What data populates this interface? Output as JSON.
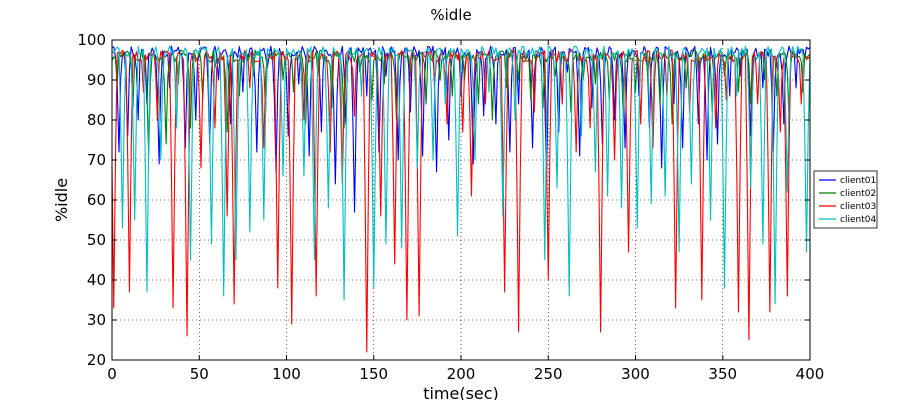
{
  "chart_data": {
    "type": "line",
    "title": "%idle",
    "xlabel": "time(sec)",
    "ylabel": "%idle",
    "xlim": [
      0,
      400
    ],
    "ylim": [
      20,
      100
    ],
    "xticks": [
      0,
      50,
      100,
      150,
      200,
      250,
      300,
      350,
      400
    ],
    "yticks": [
      20,
      30,
      40,
      50,
      60,
      70,
      80,
      90,
      100
    ],
    "grid": true,
    "legend_position": "right",
    "series": [
      {
        "name": "client01",
        "color": "#0000ff",
        "baseline": 97,
        "dips": [
          [
            4,
            72
          ],
          [
            9,
            76
          ],
          [
            15,
            80
          ],
          [
            20,
            84
          ],
          [
            27,
            69
          ],
          [
            33,
            88
          ],
          [
            42,
            73
          ],
          [
            48,
            80
          ],
          [
            56,
            74
          ],
          [
            61,
            90
          ],
          [
            68,
            79
          ],
          [
            75,
            87
          ],
          [
            83,
            72
          ],
          [
            89,
            93
          ],
          [
            94,
            67
          ],
          [
            101,
            76
          ],
          [
            107,
            89
          ],
          [
            113,
            71
          ],
          [
            120,
            77
          ],
          [
            128,
            64
          ],
          [
            134,
            79
          ],
          [
            139,
            57
          ],
          [
            146,
            86
          ],
          [
            153,
            72
          ],
          [
            157,
            91
          ],
          [
            164,
            70
          ],
          [
            171,
            82
          ],
          [
            178,
            71
          ],
          [
            186,
            67
          ],
          [
            193,
            75
          ],
          [
            200,
            86
          ],
          [
            207,
            69
          ],
          [
            213,
            81
          ],
          [
            220,
            79
          ],
          [
            228,
            72
          ],
          [
            233,
            84
          ],
          [
            241,
            73
          ],
          [
            249,
            66
          ],
          [
            256,
            77
          ],
          [
            261,
            92
          ],
          [
            268,
            71
          ],
          [
            275,
            83
          ],
          [
            281,
            74
          ],
          [
            288,
            80
          ],
          [
            294,
            73
          ],
          [
            302,
            86
          ],
          [
            308,
            78
          ],
          [
            315,
            68
          ],
          [
            322,
            84
          ],
          [
            327,
            73
          ],
          [
            336,
            79
          ],
          [
            341,
            70
          ],
          [
            347,
            74
          ],
          [
            354,
            86
          ],
          [
            360,
            91
          ],
          [
            366,
            76
          ],
          [
            373,
            88
          ],
          [
            379,
            72
          ],
          [
            385,
            79
          ],
          [
            392,
            88
          ]
        ]
      },
      {
        "name": "client02",
        "color": "#008000",
        "baseline": 96,
        "dips": [
          [
            3,
            89
          ],
          [
            12,
            83
          ],
          [
            21,
            71
          ],
          [
            31,
            74
          ],
          [
            38,
            89
          ],
          [
            45,
            78
          ],
          [
            52,
            85
          ],
          [
            59,
            93
          ],
          [
            66,
            77
          ],
          [
            73,
            86
          ],
          [
            81,
            91
          ],
          [
            88,
            82
          ],
          [
            98,
            90
          ],
          [
            104,
            87
          ],
          [
            111,
            79
          ],
          [
            118,
            91
          ],
          [
            126,
            83
          ],
          [
            133,
            78
          ],
          [
            142,
            92
          ],
          [
            149,
            85
          ],
          [
            156,
            89
          ],
          [
            163,
            80
          ],
          [
            171,
            91
          ],
          [
            180,
            84
          ],
          [
            188,
            90
          ],
          [
            195,
            86
          ],
          [
            202,
            90
          ],
          [
            210,
            84
          ],
          [
            218,
            80
          ],
          [
            226,
            88
          ],
          [
            233,
            90
          ],
          [
            240,
            85
          ],
          [
            247,
            83
          ],
          [
            254,
            91
          ],
          [
            263,
            82
          ],
          [
            270,
            90
          ],
          [
            277,
            89
          ],
          [
            285,
            85
          ],
          [
            293,
            81
          ],
          [
            300,
            87
          ],
          [
            307,
            91
          ],
          [
            314,
            84
          ],
          [
            321,
            79
          ],
          [
            329,
            88
          ],
          [
            336,
            92
          ],
          [
            344,
            82
          ],
          [
            351,
            91
          ],
          [
            359,
            87
          ],
          [
            366,
            84
          ],
          [
            374,
            90
          ],
          [
            381,
            86
          ],
          [
            388,
            80
          ],
          [
            396,
            87
          ]
        ]
      },
      {
        "name": "client03",
        "color": "#ff0000",
        "baseline": 96,
        "dips": [
          [
            1,
            33
          ],
          [
            10,
            37
          ],
          [
            18,
            87
          ],
          [
            26,
            80
          ],
          [
            35,
            33
          ],
          [
            43,
            26
          ],
          [
            51,
            68
          ],
          [
            59,
            78
          ],
          [
            66,
            56
          ],
          [
            70,
            34
          ],
          [
            79,
            88
          ],
          [
            87,
            73
          ],
          [
            95,
            38
          ],
          [
            103,
            29
          ],
          [
            110,
            80
          ],
          [
            117,
            36
          ],
          [
            125,
            72
          ],
          [
            132,
            64
          ],
          [
            139,
            81
          ],
          [
            146,
            22
          ],
          [
            154,
            56
          ],
          [
            162,
            44
          ],
          [
            169,
            30
          ],
          [
            176,
            31
          ],
          [
            185,
            90
          ],
          [
            192,
            79
          ],
          [
            201,
            77
          ],
          [
            206,
            61
          ],
          [
            214,
            84
          ],
          [
            225,
            37
          ],
          [
            233,
            27
          ],
          [
            242,
            82
          ],
          [
            250,
            40
          ],
          [
            258,
            84
          ],
          [
            266,
            72
          ],
          [
            274,
            78
          ],
          [
            280,
            27
          ],
          [
            288,
            70
          ],
          [
            296,
            47
          ],
          [
            303,
            79
          ],
          [
            310,
            73
          ],
          [
            318,
            86
          ],
          [
            323,
            33
          ],
          [
            331,
            82
          ],
          [
            338,
            35
          ],
          [
            346,
            78
          ],
          [
            352,
            85
          ],
          [
            359,
            32
          ],
          [
            365,
            25
          ],
          [
            370,
            84
          ],
          [
            377,
            32
          ],
          [
            383,
            77
          ],
          [
            387,
            36
          ],
          [
            395,
            84
          ]
        ]
      },
      {
        "name": "client04",
        "color": "#00bfbf",
        "baseline": 97,
        "dips": [
          [
            6,
            53
          ],
          [
            13,
            55
          ],
          [
            20,
            37
          ],
          [
            28,
            70
          ],
          [
            37,
            78
          ],
          [
            45,
            45
          ],
          [
            57,
            49
          ],
          [
            64,
            36
          ],
          [
            71,
            45
          ],
          [
            79,
            52
          ],
          [
            87,
            55
          ],
          [
            98,
            66
          ],
          [
            110,
            66
          ],
          [
            116,
            45
          ],
          [
            124,
            58
          ],
          [
            133,
            35
          ],
          [
            143,
            86
          ],
          [
            150,
            38
          ],
          [
            157,
            49
          ],
          [
            166,
            48
          ],
          [
            175,
            68
          ],
          [
            184,
            70
          ],
          [
            191,
            84
          ],
          [
            198,
            51
          ],
          [
            208,
            70
          ],
          [
            216,
            87
          ],
          [
            224,
            56
          ],
          [
            231,
            80
          ],
          [
            248,
            45
          ],
          [
            255,
            63
          ],
          [
            262,
            36
          ],
          [
            269,
            76
          ],
          [
            277,
            67
          ],
          [
            284,
            61
          ],
          [
            292,
            58
          ],
          [
            301,
            53
          ],
          [
            309,
            59
          ],
          [
            317,
            61
          ],
          [
            325,
            47
          ],
          [
            332,
            64
          ],
          [
            343,
            55
          ],
          [
            351,
            38
          ],
          [
            358,
            86
          ],
          [
            366,
            63
          ],
          [
            373,
            49
          ],
          [
            380,
            34
          ],
          [
            387,
            62
          ],
          [
            398,
            47
          ]
        ]
      }
    ]
  }
}
